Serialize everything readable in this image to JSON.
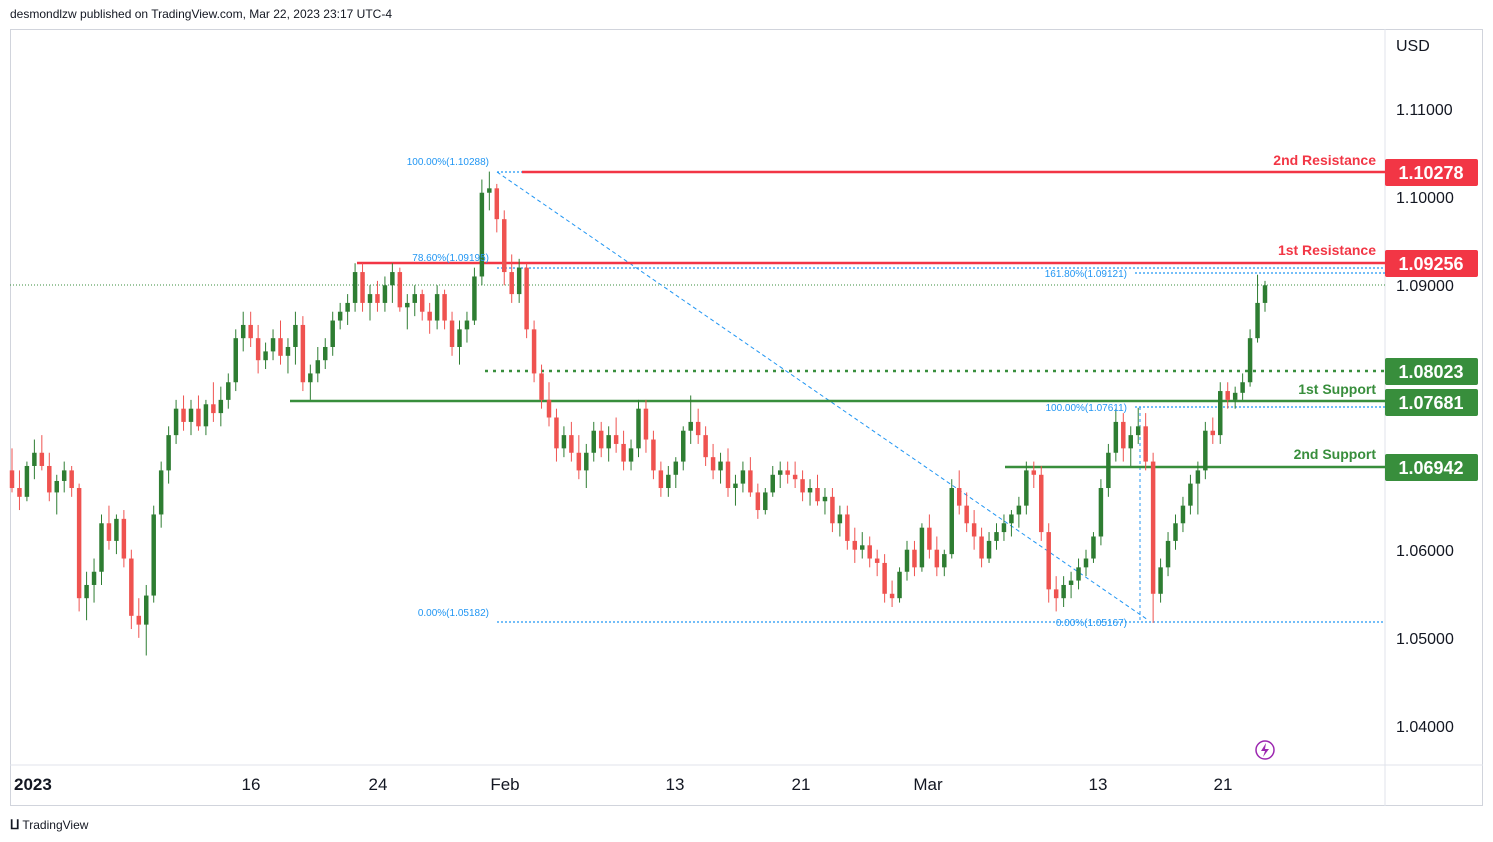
{
  "header": {
    "publisher": "desmondlzw published on TradingView.com, Mar 22, 2023 23:17 UTC-4"
  },
  "footer": {
    "brand_icon": "tradingview-logo-icon",
    "brand": "TradingView"
  },
  "chart_data": {
    "type": "candlestick",
    "currency_label": "USD",
    "y_ticks": [
      "1.11000",
      "1.10000",
      "1.09000",
      "1.06000",
      "1.05000",
      "1.04000"
    ],
    "x_ticks": [
      "2023",
      "16",
      "24",
      "Feb",
      "13",
      "21",
      "Mar",
      "13",
      "21"
    ],
    "levels": [
      {
        "name": "2nd Resistance",
        "price": "1.10278",
        "color": "#f23645"
      },
      {
        "name": "1st Resistance",
        "price": "1.09256",
        "color": "#f23645"
      },
      {
        "name": "",
        "price": "1.08023",
        "color": "#388e3c",
        "style": "dotted"
      },
      {
        "name": "1st Support",
        "price": "1.07681",
        "color": "#388e3c"
      },
      {
        "name": "2nd Support",
        "price": "1.06942",
        "color": "#388e3c"
      }
    ],
    "fib_labels": [
      {
        "text": "100.00%(1.10288)"
      },
      {
        "text": "78.60%(1.09195)"
      },
      {
        "text": "0.00%(1.05182)"
      },
      {
        "text": "161.80%(1.09121)"
      },
      {
        "text": "100.00%(1.07611)"
      },
      {
        "text": "0.00%(1.05167)"
      }
    ],
    "candles": [
      [
        1.069,
        1.0715,
        1.0665,
        1.067
      ],
      [
        1.067,
        1.069,
        1.0645,
        1.066
      ],
      [
        1.066,
        1.07,
        1.0655,
        1.0695
      ],
      [
        1.0695,
        1.0725,
        1.068,
        1.071
      ],
      [
        1.071,
        1.073,
        1.069,
        1.0695
      ],
      [
        1.0695,
        1.071,
        1.0655,
        1.0665
      ],
      [
        1.0665,
        1.0685,
        1.064,
        1.0678
      ],
      [
        1.0678,
        1.07,
        1.0665,
        1.069
      ],
      [
        1.069,
        1.0695,
        1.066,
        1.067
      ],
      [
        1.067,
        1.0675,
        1.053,
        1.0545
      ],
      [
        1.0545,
        1.0575,
        1.052,
        1.056
      ],
      [
        1.056,
        1.059,
        1.054,
        1.0575
      ],
      [
        1.0575,
        1.064,
        1.056,
        1.063
      ],
      [
        1.063,
        1.065,
        1.06,
        1.061
      ],
      [
        1.061,
        1.064,
        1.0595,
        1.0635
      ],
      [
        1.0635,
        1.0645,
        1.058,
        1.059
      ],
      [
        1.059,
        1.06,
        1.051,
        1.0525
      ],
      [
        1.0525,
        1.0545,
        1.05,
        1.0515
      ],
      [
        1.0515,
        1.056,
        1.048,
        1.0548
      ],
      [
        1.0548,
        1.065,
        1.054,
        1.064
      ],
      [
        1.064,
        1.07,
        1.0625,
        1.069
      ],
      [
        1.069,
        1.074,
        1.0675,
        1.073
      ],
      [
        1.073,
        1.077,
        1.072,
        1.076
      ],
      [
        1.076,
        1.0775,
        1.0735,
        1.0745
      ],
      [
        1.0745,
        1.077,
        1.073,
        1.076
      ],
      [
        1.076,
        1.0775,
        1.0735,
        1.074
      ],
      [
        1.074,
        1.077,
        1.073,
        1.0765
      ],
      [
        1.0765,
        1.079,
        1.0745,
        1.0755
      ],
      [
        1.0755,
        1.0785,
        1.074,
        1.077
      ],
      [
        1.077,
        1.08,
        1.076,
        1.079
      ],
      [
        1.079,
        1.085,
        1.078,
        1.084
      ],
      [
        1.084,
        1.087,
        1.0825,
        1.0855
      ],
      [
        1.0855,
        1.087,
        1.083,
        1.084
      ],
      [
        1.084,
        1.0855,
        1.08,
        1.0815
      ],
      [
        1.0815,
        1.0835,
        1.0805,
        1.0825
      ],
      [
        1.0825,
        1.085,
        1.0815,
        1.084
      ],
      [
        1.084,
        1.086,
        1.081,
        1.082
      ],
      [
        1.082,
        1.084,
        1.08,
        1.083
      ],
      [
        1.083,
        1.087,
        1.081,
        1.0855
      ],
      [
        1.0855,
        1.0865,
        1.078,
        1.079
      ],
      [
        1.079,
        1.081,
        1.077,
        1.08
      ],
      [
        1.08,
        1.083,
        1.079,
        1.0815
      ],
      [
        1.0815,
        1.084,
        1.0805,
        1.083
      ],
      [
        1.083,
        1.087,
        1.082,
        1.086
      ],
      [
        1.086,
        1.088,
        1.085,
        1.087
      ],
      [
        1.087,
        1.089,
        1.0855,
        1.088
      ],
      [
        1.088,
        1.0925,
        1.087,
        1.0915
      ],
      [
        1.0915,
        1.0925,
        1.087,
        1.088
      ],
      [
        1.088,
        1.09,
        1.086,
        1.089
      ],
      [
        1.089,
        1.0905,
        1.087,
        1.088
      ],
      [
        1.088,
        1.091,
        1.087,
        1.09
      ],
      [
        1.09,
        1.0925,
        1.088,
        1.0915
      ],
      [
        1.0915,
        1.092,
        1.087,
        1.0875
      ],
      [
        1.0875,
        1.089,
        1.085,
        1.088
      ],
      [
        1.088,
        1.09,
        1.0865,
        1.089
      ],
      [
        1.089,
        1.0895,
        1.086,
        1.087
      ],
      [
        1.087,
        1.088,
        1.0845,
        1.086
      ],
      [
        1.086,
        1.09,
        1.085,
        1.089
      ],
      [
        1.089,
        1.0895,
        1.085,
        1.086
      ],
      [
        1.086,
        1.087,
        1.082,
        1.083
      ],
      [
        1.083,
        1.086,
        1.081,
        1.085
      ],
      [
        1.085,
        1.087,
        1.0835,
        1.086
      ],
      [
        1.086,
        1.092,
        1.0855,
        1.091
      ],
      [
        1.091,
        1.102,
        1.09,
        1.1005
      ],
      [
        1.1005,
        1.1029,
        1.0985,
        1.101
      ],
      [
        1.101,
        1.1015,
        1.096,
        1.0975
      ],
      [
        1.0975,
        1.0985,
        1.09,
        1.0915
      ],
      [
        1.0915,
        1.0935,
        1.088,
        1.089
      ],
      [
        1.089,
        1.093,
        1.088,
        1.092
      ],
      [
        1.092,
        1.0925,
        1.084,
        1.085
      ],
      [
        1.085,
        1.086,
        1.079,
        1.08
      ],
      [
        1.08,
        1.081,
        1.076,
        1.077
      ],
      [
        1.077,
        1.079,
        1.074,
        1.075
      ],
      [
        1.075,
        1.076,
        1.07,
        1.0715
      ],
      [
        1.0715,
        1.074,
        1.0705,
        1.073
      ],
      [
        1.073,
        1.0745,
        1.07,
        1.071
      ],
      [
        1.071,
        1.073,
        1.068,
        1.069
      ],
      [
        1.069,
        1.072,
        1.067,
        1.071
      ],
      [
        1.071,
        1.0745,
        1.07,
        1.0735
      ],
      [
        1.0735,
        1.0745,
        1.0705,
        1.0715
      ],
      [
        1.0715,
        1.074,
        1.07,
        1.073
      ],
      [
        1.073,
        1.075,
        1.071,
        1.072
      ],
      [
        1.072,
        1.0735,
        1.069,
        1.07
      ],
      [
        1.07,
        1.0725,
        1.069,
        1.0715
      ],
      [
        1.0715,
        1.077,
        1.0705,
        1.076
      ],
      [
        1.076,
        1.077,
        1.071,
        1.0725
      ],
      [
        1.0725,
        1.0735,
        1.068,
        1.069
      ],
      [
        1.069,
        1.07,
        1.066,
        1.067
      ],
      [
        1.067,
        1.0695,
        1.066,
        1.0685
      ],
      [
        1.0685,
        1.0705,
        1.067,
        1.07
      ],
      [
        1.07,
        1.074,
        1.069,
        1.0735
      ],
      [
        1.0735,
        1.0775,
        1.072,
        1.0745
      ],
      [
        1.0745,
        1.076,
        1.072,
        1.073
      ],
      [
        1.073,
        1.074,
        1.0695,
        1.0705
      ],
      [
        1.0705,
        1.072,
        1.068,
        1.069
      ],
      [
        1.069,
        1.071,
        1.0675,
        1.07
      ],
      [
        1.07,
        1.0715,
        1.066,
        1.067
      ],
      [
        1.067,
        1.0685,
        1.065,
        1.0675
      ],
      [
        1.0675,
        1.07,
        1.0665,
        1.069
      ],
      [
        1.069,
        1.0705,
        1.066,
        1.0665
      ],
      [
        1.0665,
        1.0675,
        1.0635,
        1.0645
      ],
      [
        1.0645,
        1.067,
        1.064,
        1.0665
      ],
      [
        1.0665,
        1.0695,
        1.066,
        1.0685
      ],
      [
        1.0685,
        1.07,
        1.067,
        1.069
      ],
      [
        1.069,
        1.07,
        1.0675,
        1.0685
      ],
      [
        1.0685,
        1.07,
        1.067,
        1.068
      ],
      [
        1.068,
        1.069,
        1.0655,
        1.0665
      ],
      [
        1.0665,
        1.068,
        1.065,
        1.067
      ],
      [
        1.067,
        1.0685,
        1.065,
        1.0655
      ],
      [
        1.0655,
        1.067,
        1.064,
        1.066
      ],
      [
        1.066,
        1.067,
        1.062,
        1.063
      ],
      [
        1.063,
        1.065,
        1.0615,
        1.064
      ],
      [
        1.064,
        1.065,
        1.06,
        1.061
      ],
      [
        1.061,
        1.0625,
        1.0585,
        1.06
      ],
      [
        1.06,
        1.062,
        1.059,
        1.0605
      ],
      [
        1.0605,
        1.0615,
        1.058,
        1.059
      ],
      [
        1.059,
        1.06,
        1.057,
        1.0585
      ],
      [
        1.0585,
        1.0595,
        1.054,
        1.055
      ],
      [
        1.055,
        1.0565,
        1.0535,
        1.0545
      ],
      [
        1.0545,
        1.058,
        1.054,
        1.0575
      ],
      [
        1.0575,
        1.061,
        1.0565,
        1.06
      ],
      [
        1.06,
        1.061,
        1.057,
        1.058
      ],
      [
        1.058,
        1.063,
        1.0575,
        1.0625
      ],
      [
        1.0625,
        1.064,
        1.059,
        1.06
      ],
      [
        1.06,
        1.0615,
        1.057,
        1.058
      ],
      [
        1.058,
        1.06,
        1.057,
        1.0595
      ],
      [
        1.0595,
        1.068,
        1.059,
        1.067
      ],
      [
        1.067,
        1.069,
        1.064,
        1.065
      ],
      [
        1.065,
        1.0665,
        1.062,
        1.063
      ],
      [
        1.063,
        1.0645,
        1.06,
        1.0615
      ],
      [
        1.0615,
        1.0625,
        1.058,
        1.059
      ],
      [
        1.059,
        1.062,
        1.0585,
        1.061
      ],
      [
        1.061,
        1.063,
        1.06,
        1.062
      ],
      [
        1.062,
        1.064,
        1.061,
        1.063
      ],
      [
        1.063,
        1.0645,
        1.0615,
        1.064
      ],
      [
        1.064,
        1.066,
        1.0625,
        1.065
      ],
      [
        1.065,
        1.07,
        1.064,
        1.069
      ],
      [
        1.069,
        1.07,
        1.067,
        1.0685
      ],
      [
        1.0685,
        1.0695,
        1.061,
        1.062
      ],
      [
        1.062,
        1.063,
        1.054,
        1.0555
      ],
      [
        1.0555,
        1.057,
        1.053,
        1.0545
      ],
      [
        1.0545,
        1.057,
        1.0535,
        1.056
      ],
      [
        1.056,
        1.0575,
        1.0545,
        1.0565
      ],
      [
        1.0565,
        1.059,
        1.0555,
        1.058
      ],
      [
        1.058,
        1.06,
        1.057,
        1.059
      ],
      [
        1.059,
        1.062,
        1.0585,
        1.0615
      ],
      [
        1.0615,
        1.068,
        1.0605,
        1.067
      ],
      [
        1.067,
        1.072,
        1.066,
        1.071
      ],
      [
        1.071,
        1.076,
        1.07,
        1.0745
      ],
      [
        1.0745,
        1.0755,
        1.07,
        1.0715
      ],
      [
        1.0715,
        1.074,
        1.0695,
        1.073
      ],
      [
        1.073,
        1.0761,
        1.072,
        1.074
      ],
      [
        1.074,
        1.0755,
        1.069,
        1.07
      ],
      [
        1.07,
        1.071,
        1.0517,
        1.055
      ],
      [
        1.055,
        1.059,
        1.054,
        1.058
      ],
      [
        1.058,
        1.062,
        1.057,
        1.061
      ],
      [
        1.061,
        1.064,
        1.06,
        1.063
      ],
      [
        1.063,
        1.066,
        1.062,
        1.065
      ],
      [
        1.065,
        1.0685,
        1.064,
        1.0675
      ],
      [
        1.0675,
        1.07,
        1.064,
        1.069
      ],
      [
        1.069,
        1.0745,
        1.068,
        1.0735
      ],
      [
        1.0735,
        1.075,
        1.072,
        1.073
      ],
      [
        1.073,
        1.079,
        1.072,
        1.078
      ],
      [
        1.078,
        1.079,
        1.076,
        1.077
      ],
      [
        1.077,
        1.0785,
        1.076,
        1.0778
      ],
      [
        1.0778,
        1.08,
        1.077,
        1.079
      ],
      [
        1.079,
        1.085,
        1.0785,
        1.084
      ],
      [
        1.084,
        1.0912,
        1.0835,
        1.088
      ],
      [
        1.088,
        1.0905,
        1.087,
        1.09
      ]
    ]
  }
}
